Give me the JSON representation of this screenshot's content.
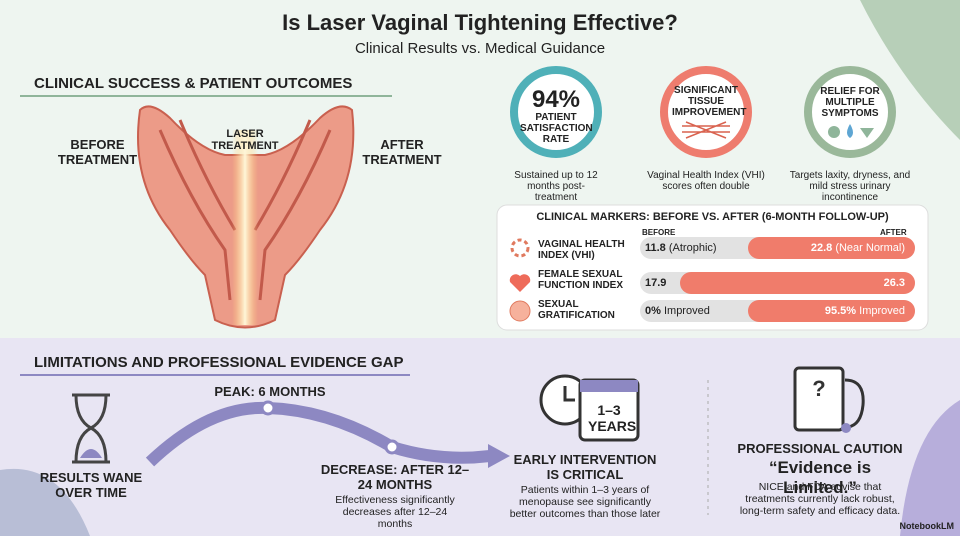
{
  "header": {
    "title": "Is Laser Vaginal Tightening Effective?",
    "subtitle": "Clinical Results vs. Medical Guidance"
  },
  "clinical": {
    "heading": "CLINICAL SUCCESS & PATIENT OUTCOMES",
    "before": "BEFORE TREATMENT",
    "laser": "LASER TREATMENT",
    "after": "AFTER TREATMENT"
  },
  "stats": [
    {
      "value": "94%",
      "label": "PATIENT SATISFACTION RATE",
      "caption": "Sustained up to 12 months post-treatment"
    },
    {
      "label": "SIGNIFICANT TISSUE IMPROVEMENT",
      "caption": "Vaginal Health Index (VHI) scores often double"
    },
    {
      "label": "RELIEF FOR MULTIPLE SYMPTOMS",
      "caption": "Targets laxity, dryness, and mild stress urinary incontinence"
    }
  ],
  "markers": {
    "title": "CLINICAL MARKERS: BEFORE VS. AFTER (6-MONTH FOLLOW-UP)",
    "before_label": "BEFORE",
    "after_label": "AFTER",
    "rows": [
      {
        "name": "VAGINAL HEALTH INDEX (VHI)",
        "before": "11.8",
        "before_note": "(Atrophic)",
        "after": "22.8",
        "after_note": "(Near Normal)"
      },
      {
        "name": "FEMALE SEXUAL FUNCTION INDEX",
        "before": "17.9",
        "after": "26.3"
      },
      {
        "name": "SEXUAL GRATIFICATION",
        "before": "0%",
        "before_note": "Improved",
        "after": "95.5%",
        "after_note": "Improved"
      }
    ]
  },
  "limitations": {
    "heading": "LIMITATIONS AND PROFESSIONAL EVIDENCE GAP",
    "wane": "RESULTS WANE OVER TIME",
    "peak": "PEAK: 6 MONTHS",
    "decrease": "DECREASE: AFTER 12–24 MONTHS",
    "decrease_text": "Effectiveness significantly decreases after 12–24 months"
  },
  "early": {
    "icon_text": "1–3 YEARS",
    "title": "EARLY INTERVENTION IS CRITICAL",
    "text": "Patients within 1–3 years of menopause see significantly better outcomes than those later"
  },
  "caution": {
    "title": "PROFESSIONAL CAUTION",
    "quote": "“Evidence is Limited.”",
    "text": "NICE and FDA advise that treatments currently lack robust, long-term safety and efficacy data."
  },
  "footer": {
    "brand": "NotebookLM"
  }
}
